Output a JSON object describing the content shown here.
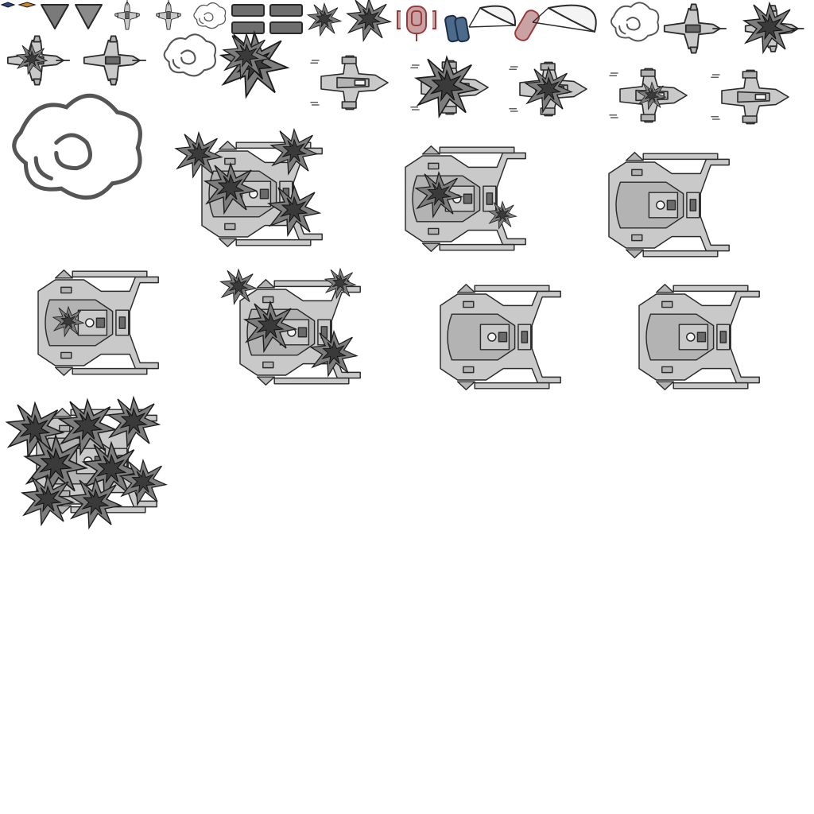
{
  "sheet": {
    "background": "#ffffff",
    "ink_color": "#2a2a2a",
    "hull_color": "#c9c9c9",
    "accent_red": "#9a3a3a",
    "accent_blue": "#4b6a8c"
  },
  "sprites": {
    "chevrons": "chevron-small-icons",
    "triangles": "triangle-marker",
    "fighter_small": "fighter-small",
    "puffs": "smoke-puff",
    "bars": "health-bar-segment",
    "explosions": "explosion-burst",
    "drop_pod": "supply-drop-pod",
    "parachute": "parachute-crate",
    "interceptor": "interceptor-ship",
    "cruiser": "capital-cruiser"
  }
}
